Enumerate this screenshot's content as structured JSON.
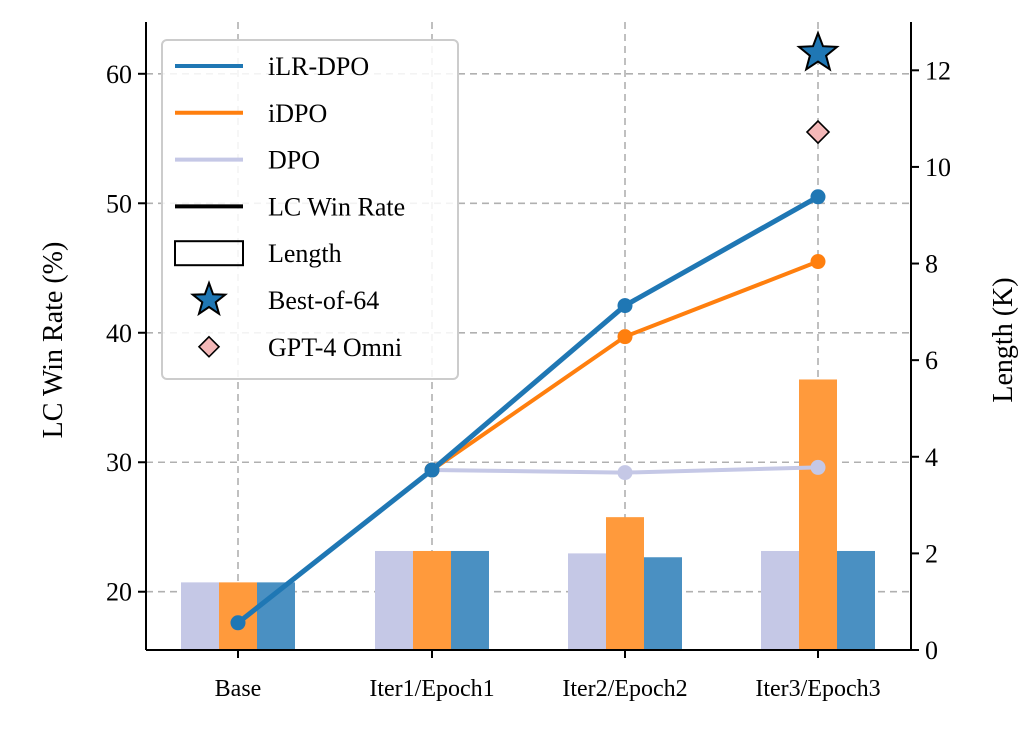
{
  "chart_data": {
    "type": "bar+line",
    "categories": [
      "Base",
      "Iter1/Epoch1",
      "Iter2/Epoch2",
      "Iter3/Epoch3"
    ],
    "ylabel_left": "LC Win Rate (%)",
    "ylabel_right": "Length (K)",
    "ylim_left": [
      15.5,
      64
    ],
    "ylim_right": [
      0,
      13
    ],
    "yticks_left": [
      "20",
      "30",
      "40",
      "50",
      "60"
    ],
    "yticks_right": [
      "0",
      "2",
      "4",
      "6",
      "8",
      "10",
      "12"
    ],
    "grid": true,
    "line_series": [
      {
        "name": "iLR-DPO",
        "color": "#1f77b4",
        "values": [
          17.6,
          29.4,
          42.1,
          50.5
        ]
      },
      {
        "name": "iDPO",
        "color": "#ff7f0e",
        "values": [
          17.6,
          29.4,
          39.7,
          45.5
        ]
      },
      {
        "name": "DPO",
        "color": "#c5c8e6",
        "values": [
          17.6,
          29.4,
          29.2,
          29.6
        ]
      }
    ],
    "bar_series": [
      {
        "name": "DPO",
        "color": "#c5c8e6",
        "values": [
          1.4,
          2.05,
          2.0,
          2.05
        ]
      },
      {
        "name": "iDPO",
        "color": "#ff9a3c",
        "values": [
          1.4,
          2.05,
          2.75,
          5.6
        ]
      },
      {
        "name": "iLR-DPO",
        "color": "#4a90c2",
        "values": [
          1.4,
          2.05,
          1.92,
          2.05
        ]
      }
    ],
    "markers": [
      {
        "name": "Best-of-64",
        "shape": "star",
        "color": "#1f77b4",
        "category": "Iter3/Epoch3",
        "value": 61.6
      },
      {
        "name": "GPT-4 Omni",
        "shape": "diamond",
        "color": "#f4b8b8",
        "category": "Iter3/Epoch3",
        "value": 55.5
      }
    ],
    "legend": {
      "placement": "top-left",
      "entries": [
        "iLR-DPO",
        "iDPO",
        "DPO",
        "LC Win Rate",
        "Length",
        "Best-of-64",
        "GPT-4 Omni"
      ]
    }
  }
}
